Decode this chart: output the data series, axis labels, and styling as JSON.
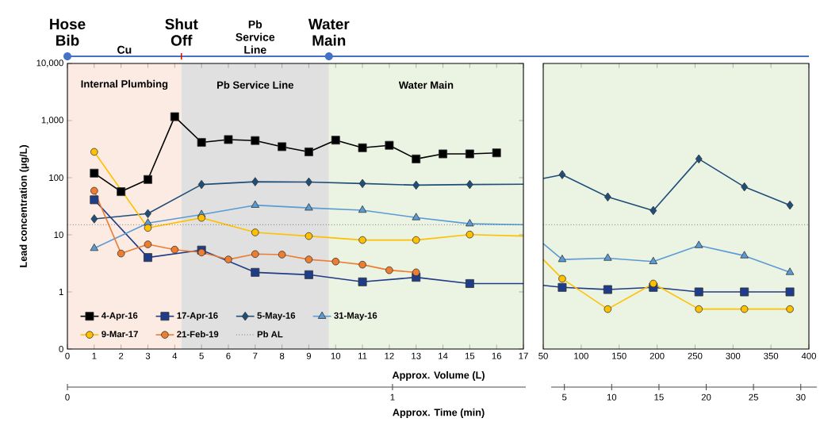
{
  "chart_data": [
    {
      "type": "line",
      "xlabel": "Approx. Volume (L)",
      "ylabel": "Lead concentration (µg/L)",
      "x2label": "Approx. Time (min)",
      "xlim": [
        0,
        17
      ],
      "xticks": [
        0,
        1,
        2,
        3,
        4,
        5,
        6,
        7,
        8,
        9,
        10,
        11,
        12,
        13,
        14,
        15,
        16,
        17
      ],
      "ylim": [
        0.1,
        10000
      ],
      "log": "y",
      "yticks": [
        {
          "value": 0.1,
          "label": "0"
        },
        1,
        10,
        100,
        {
          "value": 1000,
          "label": "1,000"
        },
        {
          "value": 10000,
          "label": "10,000"
        }
      ],
      "x2lim": [
        0,
        1.41
      ],
      "x2ticks": [
        0,
        1
      ],
      "legend": "bottom left",
      "line_style": "solid",
      "series": [
        {
          "name": "4-Apr-16",
          "color": "#000000",
          "marker": "square",
          "x": [
            1,
            2,
            3,
            4,
            5,
            6,
            7,
            8,
            9,
            10,
            11,
            12,
            13,
            14,
            15,
            16
          ],
          "values": [
            120,
            57,
            93,
            1170,
            415,
            465,
            447,
            349,
            283,
            454,
            334,
            369,
            213,
            261,
            261,
            272
          ]
        },
        {
          "name": "17-Apr-16",
          "color": "#1f3c88",
          "marker": "square",
          "x": [
            1,
            3,
            5,
            7,
            9,
            11,
            13,
            15
          ],
          "values": [
            41,
            4.0,
            5.4,
            2.2,
            2.0,
            1.5,
            1.8,
            1.4
          ]
        },
        {
          "name": "5-May-16",
          "color": "#1f4e79",
          "marker": "diamond",
          "x": [
            1,
            3,
            5,
            7,
            9,
            11,
            13,
            15
          ],
          "values": [
            19,
            23.5,
            76,
            85,
            84,
            79,
            74,
            76
          ]
        },
        {
          "name": "31-May-16",
          "color": "#5b9bd5",
          "marker": "triangle",
          "x": [
            1,
            3,
            5,
            7,
            9,
            11,
            13,
            15
          ],
          "values": [
            5.8,
            16,
            22.6,
            33,
            29.5,
            27,
            20,
            15.6
          ]
        },
        {
          "name": "9-Mar-17",
          "color": "#ffc000",
          "marker": "circle",
          "x": [
            1,
            3,
            5,
            7,
            9,
            11,
            13,
            15
          ],
          "values": [
            283,
            13.2,
            19.8,
            11,
            9.5,
            8.1,
            8.1,
            10.1
          ]
        },
        {
          "name": "21-Feb-19",
          "color": "#ed7d31",
          "marker": "circle",
          "x": [
            1,
            2,
            3,
            4,
            5,
            6,
            7,
            8,
            9,
            10,
            11,
            12,
            13
          ],
          "values": [
            59,
            4.7,
            6.8,
            5.5,
            4.9,
            3.7,
            4.6,
            4.5,
            3.7,
            3.4,
            3.0,
            2.4,
            2.2
          ]
        },
        {
          "color": "#1f3c88",
          "marker": "none",
          "x": [
            15,
            17
          ],
          "values": [
            1.4,
            1.4
          ]
        },
        {
          "color": "#1f4e79",
          "marker": "none",
          "x": [
            15,
            17
          ],
          "values": [
            76,
            77
          ]
        },
        {
          "color": "#5b9bd5",
          "marker": "none",
          "x": [
            15,
            17
          ],
          "values": [
            15.6,
            15
          ]
        },
        {
          "color": "#ffc000",
          "marker": "none",
          "x": [
            15,
            17
          ],
          "values": [
            10.1,
            9.5
          ]
        }
      ],
      "ref_lines": [
        {
          "axis": "y",
          "value": 15,
          "label": "Pb AL",
          "color": "#404040",
          "line_style": "dotted"
        }
      ],
      "bands": [
        {
          "axis": "x",
          "from": 0,
          "to": 4.25,
          "label": "Internal Plumbing",
          "color": "#fcebe2"
        },
        {
          "axis": "x",
          "from": 4.25,
          "to": 9.75,
          "label": "Pb Service Line",
          "color": "#e0e0e0"
        },
        {
          "axis": "x",
          "from": 9.75,
          "to": 17,
          "label": "Water Main",
          "color": "#ebf3e3"
        }
      ],
      "annotations": [
        "Hose Bib",
        "Cu",
        "Shut Off",
        "Pb Service Line",
        "Water Main"
      ]
    },
    {
      "type": "line",
      "xlim": [
        50,
        400
      ],
      "xticks": [
        50,
        100,
        150,
        200,
        250,
        300,
        350,
        400
      ],
      "ylim": [
        0.1,
        10000
      ],
      "log": "y",
      "tick_labels": "x",
      "x2lim": [
        3.6,
        31.7
      ],
      "x2ticks": [
        5,
        10,
        15,
        20,
        25,
        30
      ],
      "line_style": "solid",
      "series": [
        {
          "color": "#1f3c88",
          "marker": "square",
          "x": [
            75,
            135,
            195,
            255,
            315,
            375
          ],
          "values": [
            1.2,
            1.1,
            1.2,
            1.0,
            1.0,
            1.0
          ]
        },
        {
          "color": "#1f4e79",
          "marker": "diamond",
          "x": [
            75,
            135,
            195,
            255,
            315,
            375
          ],
          "values": [
            113,
            46,
            26.6,
            213,
            69,
            33
          ]
        },
        {
          "color": "#5b9bd5",
          "marker": "triangle",
          "x": [
            75,
            135,
            195,
            255,
            315,
            375
          ],
          "values": [
            3.7,
            3.9,
            3.4,
            6.5,
            4.3,
            2.2
          ]
        },
        {
          "color": "#ffc000",
          "marker": "circle",
          "x": [
            75,
            135,
            195,
            255,
            315,
            375
          ],
          "values": [
            1.7,
            0.5,
            1.4,
            0.5,
            0.5,
            0.5
          ]
        },
        {
          "color": "#1f3c88",
          "marker": "none",
          "x": [
            50,
            75
          ],
          "values": [
            1.3,
            1.2
          ]
        },
        {
          "color": "#1f4e79",
          "marker": "none",
          "x": [
            50,
            75
          ],
          "values": [
            97,
            113
          ]
        },
        {
          "color": "#5b9bd5",
          "marker": "none",
          "x": [
            50,
            75
          ],
          "values": [
            7,
            3.7
          ]
        },
        {
          "color": "#ffc000",
          "marker": "none",
          "x": [
            50,
            75
          ],
          "values": [
            3.7,
            1.7
          ]
        }
      ],
      "ref_lines": [
        {
          "axis": "y",
          "value": 15,
          "color": "#404040",
          "line_style": "dotted"
        }
      ],
      "bands": [
        {
          "axis": "x",
          "from": 50,
          "to": 400,
          "color": "#ebf3e3"
        }
      ]
    }
  ]
}
